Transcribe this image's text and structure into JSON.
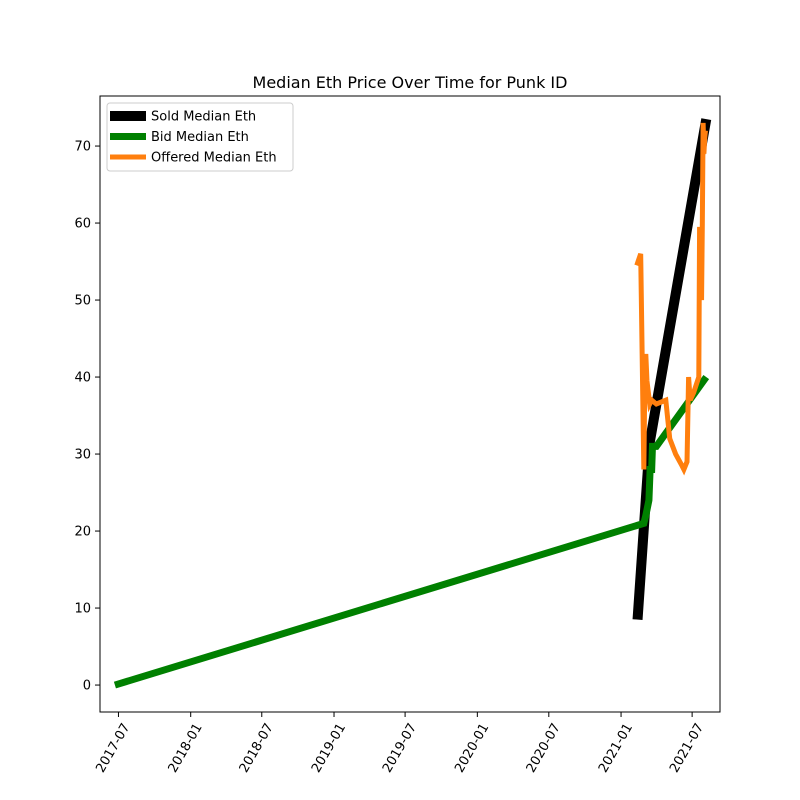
{
  "chart_data": {
    "type": "line",
    "title": "Median Eth Price Over Time for Punk ID",
    "xlabel": "",
    "ylabel": "",
    "xlim": [
      "2017-05-15",
      "2021-09-10"
    ],
    "ylim": [
      -3.5,
      76.5
    ],
    "x_ticks": [
      "2017-07",
      "2018-01",
      "2018-07",
      "2019-01",
      "2019-07",
      "2020-01",
      "2020-07",
      "2021-01",
      "2021-07"
    ],
    "y_ticks": [
      0,
      10,
      20,
      30,
      40,
      50,
      60,
      70
    ],
    "grid": false,
    "legend_position": "top-left",
    "series": [
      {
        "name": "Sold Median Eth",
        "color": "#000000",
        "x": [
          "2021-02-12",
          "2021-03-15",
          "2021-08-06"
        ],
        "y": [
          8.5,
          31.5,
          73.5
        ]
      },
      {
        "name": "Bid Median Eth",
        "color": "#008000",
        "x": [
          "2017-06-22",
          "2021-02-28",
          "2021-03-05",
          "2021-03-13",
          "2021-03-16",
          "2021-03-20",
          "2021-03-22",
          "2021-04-01",
          "2021-08-06"
        ],
        "y": [
          0,
          21,
          22,
          24,
          28,
          28,
          31,
          31,
          40
        ]
      },
      {
        "name": "Offered Median Eth",
        "color": "#ff7f0e",
        "x": [
          "2021-02-10",
          "2021-02-20",
          "2021-02-28",
          "2021-03-02",
          "2021-03-05",
          "2021-03-08",
          "2021-03-15",
          "2021-03-20",
          "2021-04-01",
          "2021-04-25",
          "2021-05-05",
          "2021-05-20",
          "2021-06-05",
          "2021-06-10",
          "2021-06-18",
          "2021-06-22",
          "2021-06-26",
          "2021-07-05",
          "2021-07-18",
          "2021-07-20",
          "2021-07-25",
          "2021-07-27",
          "2021-07-29",
          "2021-07-31",
          "2021-08-02",
          "2021-08-04"
        ],
        "y": [
          54.5,
          56,
          28,
          37,
          43,
          39.5,
          36.5,
          37,
          36.5,
          37,
          32,
          30,
          28.5,
          28,
          29,
          40,
          37,
          38,
          40,
          59.5,
          50,
          60,
          73,
          69,
          71,
          72
        ]
      }
    ]
  }
}
